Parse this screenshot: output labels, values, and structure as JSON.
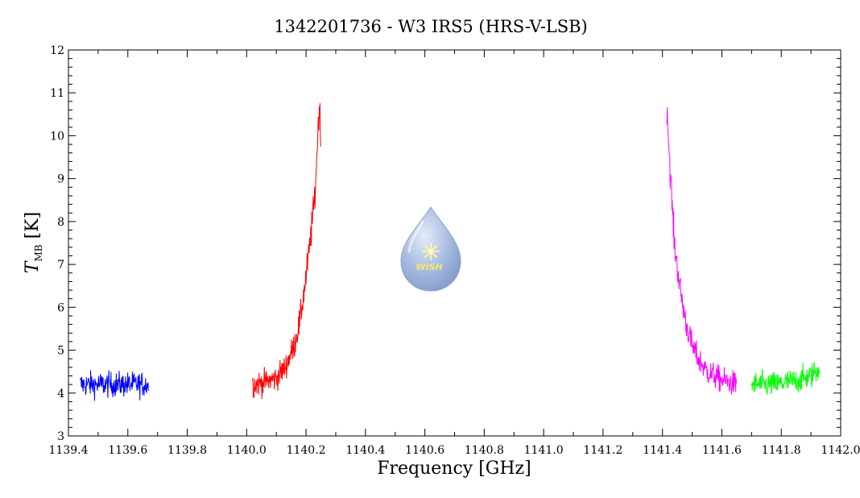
{
  "chart_data": {
    "type": "line",
    "title": "1342201736 - W3 IRS5 (HRS-V-LSB)",
    "xlabel": "Frequency [GHz]",
    "ylabel_main": "T",
    "ylabel_sub": "MB",
    "ylabel_unit": "[K]",
    "xlim": [
      1139.4,
      1142.0
    ],
    "ylim": [
      3,
      12
    ],
    "x_ticks": [
      1139.4,
      1139.6,
      1139.8,
      1140.0,
      1140.2,
      1140.4,
      1140.6,
      1140.8,
      1141.0,
      1141.2,
      1141.4,
      1141.6,
      1141.8,
      1142.0
    ],
    "x_tick_labels": [
      "1139.4",
      "1139.6",
      "1139.8",
      "1140.0",
      "1140.2",
      "1140.4",
      "1140.6",
      "1140.8",
      "1141.0",
      "1141.2",
      "1141.4",
      "1141.6",
      "1141.8",
      "1142.0"
    ],
    "y_ticks": [
      3,
      4,
      5,
      6,
      7,
      8,
      9,
      10,
      11,
      12
    ],
    "y_tick_labels": [
      "3",
      "4",
      "5",
      "6",
      "7",
      "8",
      "9",
      "10",
      "11",
      "12"
    ],
    "grid": false,
    "legend": "none",
    "series": [
      {
        "color": "#0000ff",
        "points": [
          [
            1139.44,
            4.2
          ],
          [
            1139.48,
            4.2
          ],
          [
            1139.52,
            4.2
          ],
          [
            1139.56,
            4.2
          ],
          [
            1139.6,
            4.2
          ],
          [
            1139.64,
            4.2
          ],
          [
            1139.67,
            4.2
          ]
        ]
      },
      {
        "color": "#ff0000",
        "points": [
          [
            1140.02,
            4.2
          ],
          [
            1140.06,
            4.25
          ],
          [
            1140.1,
            4.35
          ],
          [
            1140.13,
            4.6
          ],
          [
            1140.16,
            5.1
          ],
          [
            1140.18,
            5.7
          ],
          [
            1140.2,
            6.7
          ],
          [
            1140.215,
            7.6
          ],
          [
            1140.23,
            8.6
          ],
          [
            1140.24,
            10.1
          ],
          [
            1140.245,
            10.8
          ],
          [
            1140.25,
            9.6
          ]
        ]
      },
      {
        "color": "#ff00ff",
        "points": [
          [
            1141.415,
            10.8
          ],
          [
            1141.42,
            10.0
          ],
          [
            1141.43,
            8.7
          ],
          [
            1141.44,
            7.5
          ],
          [
            1141.46,
            6.4
          ],
          [
            1141.48,
            5.6
          ],
          [
            1141.5,
            5.1
          ],
          [
            1141.52,
            4.8
          ],
          [
            1141.55,
            4.5
          ],
          [
            1141.6,
            4.3
          ],
          [
            1141.65,
            4.2
          ]
        ]
      },
      {
        "color": "#00ff00",
        "points": [
          [
            1141.7,
            4.2
          ],
          [
            1141.74,
            4.2
          ],
          [
            1141.78,
            4.2
          ],
          [
            1141.82,
            4.25
          ],
          [
            1141.86,
            4.3
          ],
          [
            1141.9,
            4.4
          ],
          [
            1141.93,
            4.6
          ]
        ]
      }
    ]
  },
  "logo": {
    "label": "WISH"
  }
}
